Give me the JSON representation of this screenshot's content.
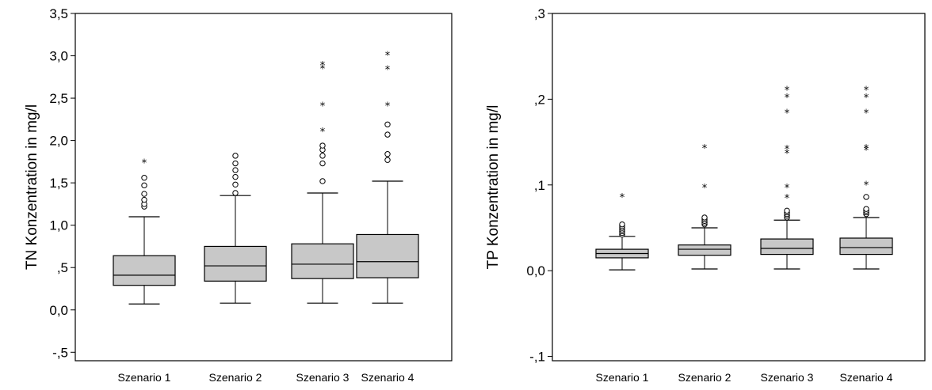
{
  "chart_data": [
    {
      "type": "box",
      "ylabel": "TN Konzentration in mg/l",
      "ylim": [
        -0.6,
        3.5
      ],
      "yticks": [
        -0.5,
        0.0,
        0.5,
        1.0,
        1.5,
        2.0,
        2.5,
        3.0,
        3.5
      ],
      "ytick_labels": [
        "-,5",
        "0,0",
        ",5",
        "1,0",
        "1,5",
        "2,0",
        "2,5",
        "3,0",
        "3,5"
      ],
      "grid": false,
      "categories": [
        "Szenario 1",
        "Szenario 2",
        "Szenario 3",
        "Szenario 4"
      ],
      "boxes": [
        {
          "min": 0.07,
          "q1": 0.29,
          "median": 0.41,
          "q3": 0.64,
          "max": 1.1,
          "outliers": [
            1.22,
            1.25,
            1.3,
            1.37,
            1.47,
            1.56
          ],
          "extremes": [
            1.75
          ]
        },
        {
          "min": 0.08,
          "q1": 0.34,
          "median": 0.52,
          "q3": 0.75,
          "max": 1.35,
          "outliers": [
            1.38,
            1.48,
            1.57,
            1.65,
            1.73,
            1.82
          ],
          "extremes": []
        },
        {
          "min": 0.08,
          "q1": 0.37,
          "median": 0.54,
          "q3": 0.78,
          "max": 1.38,
          "outliers": [
            1.52,
            1.73,
            1.82,
            1.89,
            1.94
          ],
          "extremes": [
            2.12,
            2.42,
            2.86,
            2.9
          ]
        },
        {
          "min": 0.08,
          "q1": 0.38,
          "median": 0.57,
          "q3": 0.89,
          "max": 1.52,
          "outliers": [
            1.77,
            1.84,
            2.07,
            2.19
          ],
          "extremes": [
            2.42,
            2.85,
            3.02
          ]
        }
      ]
    },
    {
      "type": "box",
      "ylabel": "TP Konzentration in mg/l",
      "ylim": [
        -0.105,
        0.3
      ],
      "yticks": [
        -0.1,
        0.0,
        0.1,
        0.2,
        0.3
      ],
      "ytick_labels": [
        "-,1",
        "0,0",
        ",1",
        ",2",
        ",3"
      ],
      "grid": false,
      "categories": [
        "Szenario 1",
        "Szenario 2",
        "Szenario 3",
        "Szenario 4"
      ],
      "boxes": [
        {
          "min": 0.001,
          "q1": 0.015,
          "median": 0.02,
          "q3": 0.025,
          "max": 0.04,
          "outliers": [
            0.042,
            0.044,
            0.046,
            0.048,
            0.05,
            0.052,
            0.054
          ],
          "extremes": [
            0.087
          ]
        },
        {
          "min": 0.002,
          "q1": 0.018,
          "median": 0.025,
          "q3": 0.03,
          "max": 0.05,
          "outliers": [
            0.054,
            0.056,
            0.058,
            0.06,
            0.062
          ],
          "extremes": [
            0.098,
            0.144
          ]
        },
        {
          "min": 0.002,
          "q1": 0.019,
          "median": 0.026,
          "q3": 0.037,
          "max": 0.059,
          "outliers": [
            0.062,
            0.064,
            0.066,
            0.068,
            0.07
          ],
          "extremes": [
            0.086,
            0.098,
            0.138,
            0.143,
            0.185,
            0.203,
            0.212
          ]
        },
        {
          "min": 0.002,
          "q1": 0.019,
          "median": 0.027,
          "q3": 0.038,
          "max": 0.062,
          "outliers": [
            0.066,
            0.068,
            0.07,
            0.072,
            0.086
          ],
          "extremes": [
            0.101,
            0.142,
            0.144,
            0.185,
            0.203,
            0.212
          ]
        }
      ]
    }
  ]
}
